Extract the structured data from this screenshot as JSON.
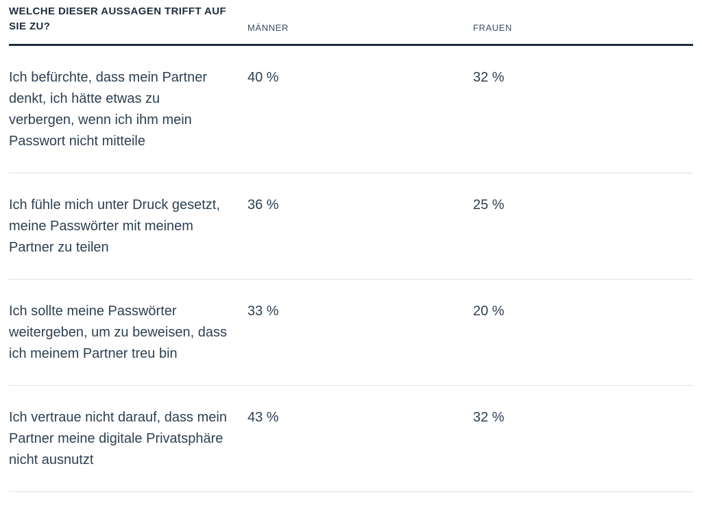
{
  "table": {
    "question_header": "WELCHE DIESER AUSSAGEN TRIFFT AUF SIE ZU?",
    "columns": {
      "men": "MÄNNER",
      "women": "FRAUEN"
    },
    "rows": [
      {
        "statement": "Ich befürchte, dass mein Partner denkt, ich hätte etwas zu verbergen, wenn ich ihm mein Passwort nicht mitteile",
        "men": "40 %",
        "women": "32 %"
      },
      {
        "statement": "Ich fühle mich unter Druck gesetzt, meine Passwörter mit meinem Partner zu teilen",
        "men": "36 %",
        "women": "25 %"
      },
      {
        "statement": "Ich sollte meine Passwörter weitergeben, um zu beweisen, dass ich meinem Partner treu bin",
        "men": "33 %",
        "women": "20 %"
      },
      {
        "statement": "Ich vertraue nicht darauf, dass mein Partner meine digitale Privatsphäre nicht ausnutzt",
        "men": "43 %",
        "women": "32 %"
      }
    ]
  },
  "colors": {
    "heading_text": "#1d2e3f",
    "body_text": "#2d3f51",
    "column_label_text": "#3c4c5c",
    "rule_heavy": "#1c2b3a",
    "rule_light": "#dde1e6",
    "background": "#ffffff"
  },
  "chart_data": {
    "type": "table",
    "title": "Welche dieser Aussagen trifft auf Sie zu?",
    "categories": [
      "Ich befürchte, dass mein Partner denkt, ich hätte etwas zu verbergen, wenn ich ihm mein Passwort nicht mitteile",
      "Ich fühle mich unter Druck gesetzt, meine Passwörter mit meinem Partner zu teilen",
      "Ich sollte meine Passwörter weitergeben, um zu beweisen, dass ich meinem Partner treu bin",
      "Ich vertraue nicht darauf, dass mein Partner meine digitale Privatsphäre nicht ausnutzt"
    ],
    "series": [
      {
        "name": "Männer",
        "values": [
          40,
          36,
          33,
          43
        ]
      },
      {
        "name": "Frauen",
        "values": [
          32,
          25,
          20,
          32
        ]
      }
    ],
    "unit": "%",
    "legend_position": "top",
    "grid": false
  }
}
